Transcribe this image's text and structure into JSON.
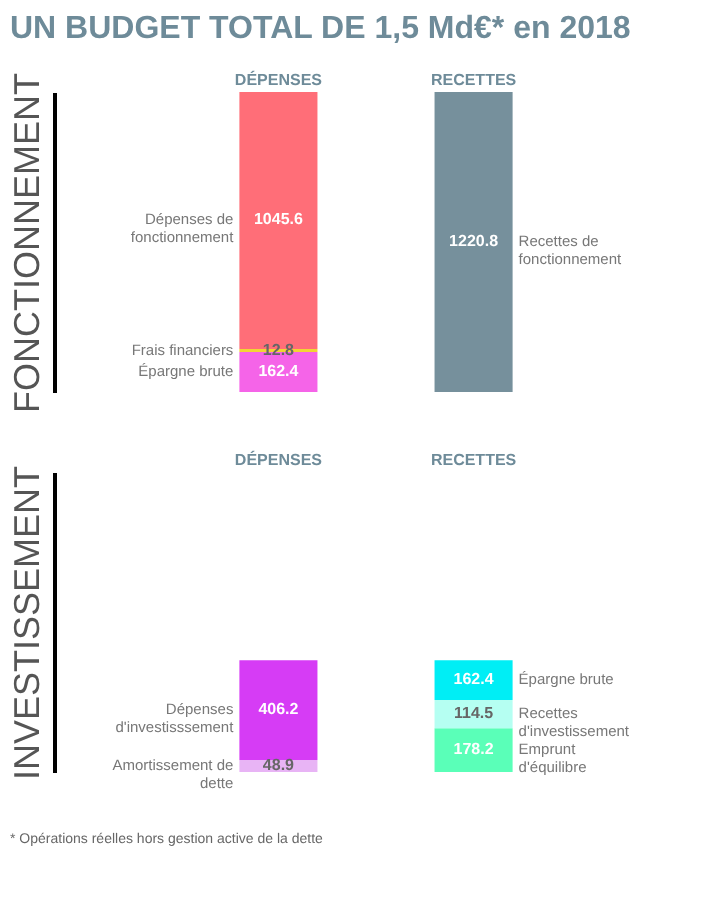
{
  "chart_data": [
    {
      "type": "bar",
      "title": "UN BUDGET TOTAL DE 1,5 Md€* en 2018",
      "ylabel": "FONCTIONNEMENT",
      "stacked": true,
      "data_labels": true,
      "categories": [
        "DÉPENSES",
        "RECETTES"
      ],
      "series": [
        {
          "name": "Épargne brute",
          "color": "#f564e8",
          "values": [
            162.4,
            null
          ]
        },
        {
          "name": "Frais financiers",
          "color": "#f2d533",
          "values": [
            12.8,
            null
          ]
        },
        {
          "name": "Dépenses de fonctionnement",
          "color": "#ff6e78",
          "values": [
            1045.6,
            null
          ]
        },
        {
          "name": "Recettes de fonctionnement",
          "color": "#76909c",
          "values": [
            null,
            1220.8
          ]
        }
      ]
    },
    {
      "type": "bar",
      "ylabel": "INVESTISSEMENT",
      "stacked": true,
      "data_labels": true,
      "categories": [
        "DÉPENSES",
        "RECETTES"
      ],
      "annotations": [
        "* Opérations réelles hors gestion active de la dette"
      ],
      "series": [
        {
          "name": "Amortissement de dette",
          "color": "#e8b4f5",
          "values": [
            48.9,
            null
          ]
        },
        {
          "name": "Dépenses d'investisssement",
          "color": "#d63cf5",
          "values": [
            406.2,
            null
          ]
        },
        {
          "name": "Emprunt d'équilibre",
          "color": "#5affb8",
          "values": [
            null,
            178.2
          ]
        },
        {
          "name": "Recettes d'investissement",
          "color": "#b5fff2",
          "values": [
            null,
            114.5
          ]
        },
        {
          "name": "Épargne brute",
          "color": "#00eef5",
          "values": [
            null,
            162.4
          ]
        }
      ]
    }
  ]
}
